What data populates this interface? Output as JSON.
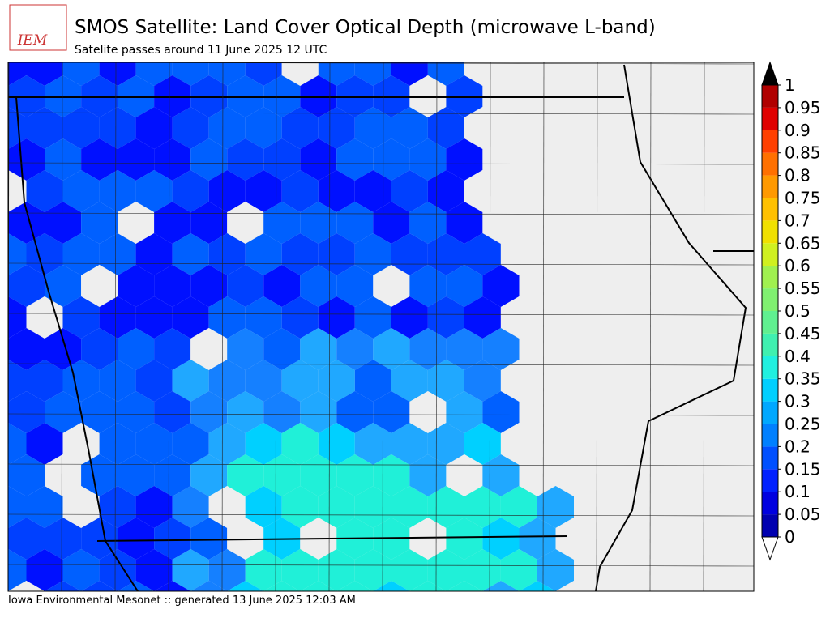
{
  "header": {
    "logo": "IEM",
    "title": "SMOS Satellite: Land Cover Optical Depth (microwave L-band)",
    "subtitle": "Satelite passes around 11 June 2025 12 UTC"
  },
  "footer": "Iowa Environmental Mesonet :: generated 13 June 2025 12:03 AM",
  "colorbar": {
    "ticks": [
      0,
      0.05,
      0.1,
      0.15,
      0.2,
      0.25,
      0.3,
      0.35,
      0.4,
      0.45,
      0.5,
      0.55,
      0.6,
      0.65,
      0.7,
      0.75,
      0.8,
      0.85,
      0.9,
      0.95,
      1
    ],
    "colors": [
      "#0000b0",
      "#0000e0",
      "#0020ff",
      "#0050ff",
      "#0080ff",
      "#00a8ff",
      "#00d0ff",
      "#20f0e0",
      "#40f0b0",
      "#60f090",
      "#80f070",
      "#a0f050",
      "#d0f020",
      "#f0e000",
      "#ffc000",
      "#ff9900",
      "#ff7000",
      "#ff4000",
      "#e00000",
      "#b00000"
    ],
    "over_color": "#000000",
    "under_color": "#ffffff"
  }
}
